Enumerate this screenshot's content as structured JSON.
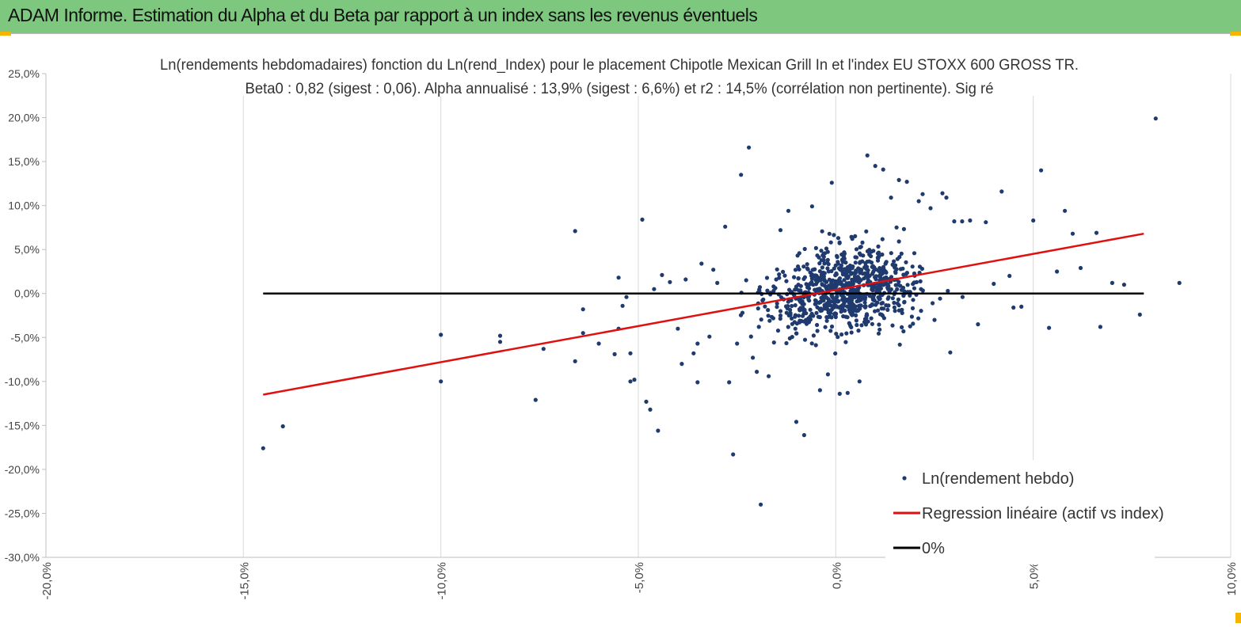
{
  "page": {
    "header_title": "ADAM Informe. Estimation du Alpha et du Beta par rapport à un index sans les revenus éventuels"
  },
  "colors": {
    "header_bg": "#7dc77e",
    "points": "#1f3a6e",
    "regression": "#e01010",
    "zero_line": "#000000",
    "corner_marker": "#f2b500"
  },
  "chart_data": {
    "type": "scatter",
    "title_line1": "Ln(rendements hebdomadaires) fonction du Ln(rend_Index) pour le placement Chipotle Mexican Grill In et l'index EU STOXX 600 GROSS TR.",
    "title_line2": "Beta0 : 0,82 (sigest : 0,06). Alpha annualisé : 13,9% (sigest : 6,6%) et r2 : 14,5% (corrélation non pertinente). Sig ré",
    "xlim": [
      -0.2,
      0.1
    ],
    "ylim": [
      -0.3,
      0.25
    ],
    "x_ticks": [
      -0.2,
      -0.15,
      -0.1,
      -0.05,
      0.0,
      0.05,
      0.1
    ],
    "x_tick_labels": [
      "-20,0%",
      "-15,0%",
      "-10,0%",
      "-5,0%",
      "0,0%",
      "5,0%",
      "10,0%"
    ],
    "y_ticks": [
      0.25,
      0.2,
      0.15,
      0.1,
      0.05,
      0.0,
      -0.05,
      -0.1,
      -0.15,
      -0.2,
      -0.25,
      -0.3
    ],
    "y_tick_labels": [
      "25,0%",
      "20,0%",
      "15,0%",
      "10,0%",
      "5,0%",
      "0,0%",
      "-5,0%",
      "-10,0%",
      "-15,0%",
      "-20,0%",
      "-25,0%",
      "-30,0%"
    ],
    "grid_vertical": true,
    "grid_horizontal": false,
    "legend_position": "bottom-right",
    "legend": {
      "points_label": "Ln(rendement hebdo)",
      "regression_label": "Regression linéaire (actif vs index)",
      "zero_label": "0%"
    },
    "regression": {
      "x": [
        -0.145,
        0.078
      ],
      "y": [
        -0.115,
        0.068
      ]
    },
    "zero_line": {
      "x": [
        -0.145,
        0.078
      ],
      "y": [
        0.0,
        0.0
      ]
    },
    "outliers": [
      [
        -0.145,
        -0.176
      ],
      [
        -0.14,
        -0.151
      ],
      [
        -0.1,
        -0.1
      ],
      [
        -0.1,
        -0.047
      ],
      [
        -0.085,
        -0.048
      ],
      [
        -0.085,
        -0.055
      ],
      [
        -0.076,
        -0.121
      ],
      [
        -0.074,
        -0.063
      ],
      [
        -0.066,
        0.071
      ],
      [
        -0.066,
        -0.077
      ],
      [
        -0.064,
        -0.045
      ],
      [
        -0.064,
        -0.018
      ],
      [
        -0.06,
        -0.057
      ],
      [
        -0.056,
        -0.069
      ],
      [
        -0.055,
        -0.04
      ],
      [
        -0.055,
        0.018
      ],
      [
        -0.054,
        -0.014
      ],
      [
        -0.053,
        -0.004
      ],
      [
        -0.052,
        -0.068
      ],
      [
        -0.052,
        -0.1
      ],
      [
        -0.051,
        -0.098
      ],
      [
        -0.049,
        0.084
      ],
      [
        -0.048,
        -0.123
      ],
      [
        -0.047,
        -0.132
      ],
      [
        -0.046,
        0.005
      ],
      [
        -0.045,
        -0.156
      ],
      [
        -0.044,
        0.021
      ],
      [
        -0.042,
        0.013
      ],
      [
        -0.04,
        -0.04
      ],
      [
        -0.038,
        0.016
      ],
      [
        -0.036,
        -0.068
      ],
      [
        -0.035,
        -0.101
      ],
      [
        -0.034,
        0.034
      ],
      [
        -0.032,
        -0.049
      ],
      [
        -0.031,
        0.027
      ],
      [
        -0.03,
        0.012
      ],
      [
        -0.028,
        0.076
      ],
      [
        -0.027,
        -0.101
      ],
      [
        -0.026,
        -0.183
      ],
      [
        -0.025,
        -0.057
      ],
      [
        -0.024,
        0.135
      ],
      [
        -0.022,
        0.166
      ],
      [
        -0.02,
        -0.089
      ],
      [
        -0.019,
        -0.24
      ],
      [
        -0.017,
        -0.094
      ],
      [
        -0.014,
        0.072
      ],
      [
        -0.012,
        0.094
      ],
      [
        -0.01,
        -0.146
      ],
      [
        -0.008,
        -0.161
      ],
      [
        -0.006,
        0.099
      ],
      [
        -0.004,
        -0.11
      ],
      [
        -0.002,
        -0.092
      ],
      [
        -0.001,
        0.126
      ],
      [
        0.001,
        -0.114
      ],
      [
        0.003,
        -0.113
      ],
      [
        0.006,
        -0.1
      ],
      [
        0.008,
        0.157
      ],
      [
        0.01,
        0.145
      ],
      [
        0.012,
        0.141
      ],
      [
        0.014,
        0.109
      ],
      [
        0.016,
        0.129
      ],
      [
        0.018,
        0.127
      ],
      [
        0.021,
        0.105
      ],
      [
        0.022,
        0.113
      ],
      [
        0.024,
        0.097
      ],
      [
        0.027,
        0.114
      ],
      [
        0.028,
        0.109
      ],
      [
        0.029,
        -0.067
      ],
      [
        0.03,
        0.082
      ],
      [
        0.032,
        0.082
      ],
      [
        0.034,
        0.083
      ],
      [
        0.036,
        -0.035
      ],
      [
        0.038,
        0.081
      ],
      [
        0.04,
        0.011
      ],
      [
        0.042,
        0.116
      ],
      [
        0.044,
        0.02
      ],
      [
        0.045,
        -0.016
      ],
      [
        0.047,
        -0.015
      ],
      [
        0.05,
        0.083
      ],
      [
        0.052,
        0.14
      ],
      [
        0.054,
        -0.039
      ],
      [
        0.056,
        0.025
      ],
      [
        0.058,
        0.094
      ],
      [
        0.06,
        0.068
      ],
      [
        0.062,
        0.029
      ],
      [
        0.066,
        0.069
      ],
      [
        0.067,
        -0.038
      ],
      [
        0.073,
        0.01
      ],
      [
        0.081,
        0.199
      ],
      [
        0.087,
        0.012
      ],
      [
        0.07,
        0.012
      ],
      [
        0.077,
        -0.024
      ],
      [
        0.025,
        -0.03
      ],
      [
        -0.035,
        -0.057
      ],
      [
        -0.039,
        -0.08
      ],
      [
        -0.021,
        -0.073
      ]
    ],
    "cluster": {
      "count": 820,
      "x_center": 0.002,
      "x_sd": 0.0135,
      "x_min": -0.045,
      "x_max": 0.05,
      "y_intercept": 0.0025,
      "y_slope": 0.82,
      "y_sd": 0.033,
      "y_min": -0.11,
      "y_max": 0.11
    }
  }
}
